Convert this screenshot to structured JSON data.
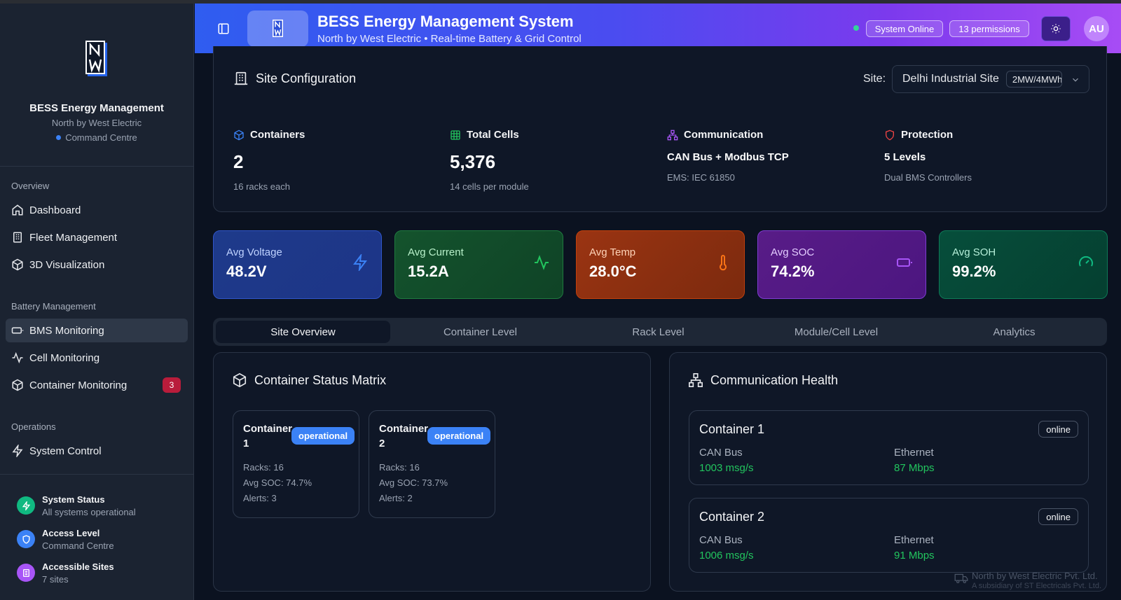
{
  "sidebar": {
    "brand_title": "BESS Energy Management",
    "brand_subtitle": "North by West Electric",
    "brand_tag": "Command Centre",
    "sections": {
      "overview": "Overview",
      "battery": "Battery Management",
      "operations": "Operations"
    },
    "items": [
      {
        "label": "Dashboard",
        "icon": "home-icon"
      },
      {
        "label": "Fleet Management",
        "icon": "building-icon"
      },
      {
        "label": "3D Visualization",
        "icon": "cube-icon"
      },
      {
        "label": "BMS Monitoring",
        "icon": "battery-icon",
        "active": true
      },
      {
        "label": "Cell Monitoring",
        "icon": "activity-icon"
      },
      {
        "label": "Container Monitoring",
        "icon": "box-icon",
        "badge": "3"
      },
      {
        "label": "System Control",
        "icon": "zap-icon"
      }
    ],
    "status": [
      {
        "title": "System Status",
        "subtitle": "All systems operational",
        "color": "#10b981"
      },
      {
        "title": "Access Level",
        "subtitle": "Command Centre",
        "color": "#3b82f6"
      },
      {
        "title": "Accessible Sites",
        "subtitle": "7 sites",
        "color": "#a855f7"
      }
    ]
  },
  "header": {
    "title": "BESS Energy Management System",
    "subtitle": "North by West Electric • Real-time Battery & Grid Control",
    "status_pill": "System Online",
    "permissions_pill": "13 permissions",
    "avatar": "AU"
  },
  "site_config": {
    "title": "Site Configuration",
    "site_label": "Site:",
    "site_value": "Delhi Industrial Site",
    "site_chip": "2MW/4MWh",
    "stats": [
      {
        "label": "Containers",
        "value": "2",
        "sub": "16 racks each"
      },
      {
        "label": "Total Cells",
        "value": "5,376",
        "sub": "14 cells per module"
      },
      {
        "label": "Communication",
        "value": "CAN Bus + Modbus TCP",
        "sub": "EMS: IEC 61850"
      },
      {
        "label": "Protection",
        "value": "5 Levels",
        "sub": "Dual BMS Controllers"
      }
    ]
  },
  "metrics": [
    {
      "label": "Avg Voltage",
      "value": "48.2V",
      "color": "#3b82f6"
    },
    {
      "label": "Avg Current",
      "value": "15.2A",
      "color": "#22c55e"
    },
    {
      "label": "Avg Temp",
      "value": "28.0°C",
      "color": "#f97316"
    },
    {
      "label": "Avg SOC",
      "value": "74.2%",
      "color": "#a855f7"
    },
    {
      "label": "Avg SOH",
      "value": "99.2%",
      "color": "#10b981"
    }
  ],
  "tabs": [
    "Site Overview",
    "Container Level",
    "Rack Level",
    "Module/Cell Level",
    "Analytics"
  ],
  "container_matrix": {
    "title": "Container Status Matrix",
    "containers": [
      {
        "name": "Container 1",
        "status": "operational",
        "racks": "Racks: 16",
        "soc": "Avg SOC: 74.7%",
        "alerts": "Alerts: 3"
      },
      {
        "name": "Container 2",
        "status": "operational",
        "racks": "Racks: 16",
        "soc": "Avg SOC: 73.7%",
        "alerts": "Alerts: 2"
      }
    ]
  },
  "comm_health": {
    "title": "Communication Health",
    "containers": [
      {
        "name": "Container 1",
        "status": "online",
        "can_label": "CAN Bus",
        "can_value": "1003 msg/s",
        "eth_label": "Ethernet",
        "eth_value": "87 Mbps"
      },
      {
        "name": "Container 2",
        "status": "online",
        "can_label": "CAN Bus",
        "can_value": "1006 msg/s",
        "eth_label": "Ethernet",
        "eth_value": "91 Mbps"
      }
    ]
  },
  "footer": {
    "line1": "North by West Electric Pvt. Ltd.",
    "line2": "A subsidiary of ST Electricals Pvt. Ltd."
  }
}
